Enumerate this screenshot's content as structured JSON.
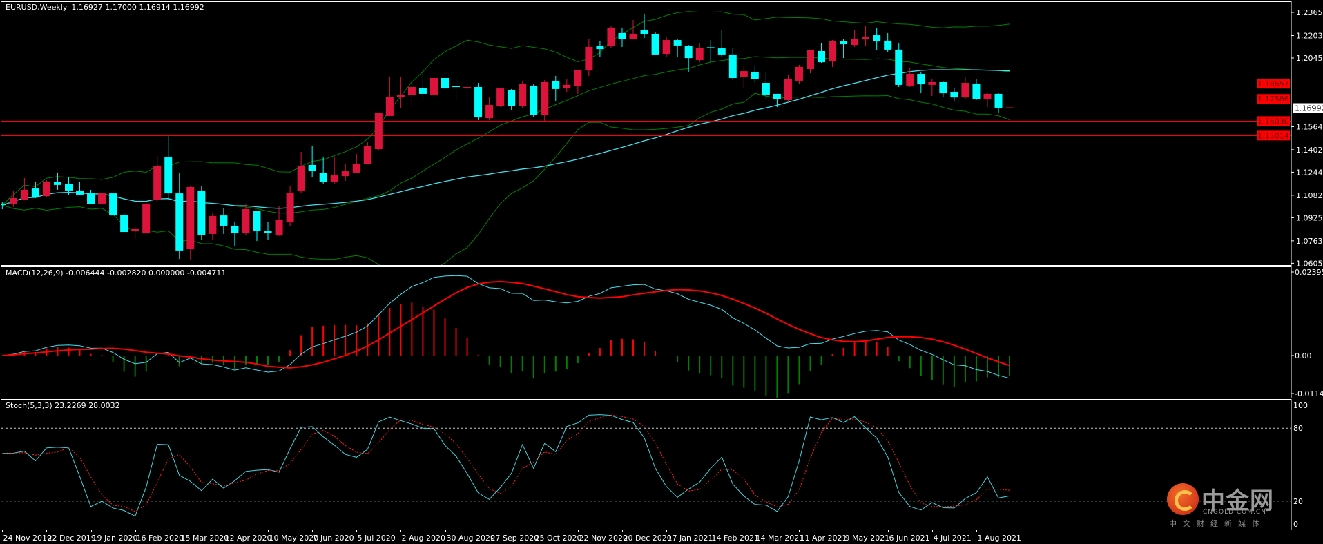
{
  "window": {
    "symbol_label": "EURUSD,Weekly",
    "ohlc_readout": "1.16927 1.17000 1.16914 1.16992"
  },
  "colors": {
    "background": "#000000",
    "up_candle": "#dc143c",
    "down_candle": "#00ffff",
    "bollinger": "#008000",
    "moving_average": "#3fe0f0",
    "level_line": "#ff0000",
    "current_price_line": "#a0a0a0",
    "macd_main": "#40e0f0",
    "macd_signal": "#ff0000",
    "hist_positive": "#ff0000",
    "hist_negative": "#008000",
    "stoch_main": "#40d8e0",
    "stoch_signal": "#ff2020"
  },
  "chart_data": {
    "type": "candlestick",
    "symbol": "EURUSD",
    "timeframe": "Weekly",
    "x_labels": [
      "24 Nov 2019",
      "22 Dec 2019",
      "19 Jan 2020",
      "16 Feb 2020",
      "15 Mar 2020",
      "12 Apr 2020",
      "10 May 2020",
      "7 Jun 2020",
      "5 Jul 2020",
      "2 Aug 2020",
      "30 Aug 2020",
      "27 Sep 2020",
      "25 Oct 2020",
      "22 Nov 2020",
      "20 Dec 2020",
      "17 Jan 2021",
      "14 Feb 2021",
      "14 Mar 2021",
      "11 Apr 2021",
      "9 May 2021",
      "6 Jun 2021",
      "4 Jul 2021",
      "1 Aug 2021"
    ],
    "ohlc_fields": [
      "open",
      "high",
      "low",
      "close"
    ],
    "ohlc": [
      [
        1.1024,
        1.1034,
        1.0985,
        1.1014
      ],
      [
        1.1024,
        1.1116,
        1.1,
        1.1063
      ],
      [
        1.1053,
        1.1203,
        1.1048,
        1.1121
      ],
      [
        1.113,
        1.1174,
        1.1063,
        1.1072
      ],
      [
        1.1077,
        1.1188,
        1.1067,
        1.1179
      ],
      [
        1.1174,
        1.1242,
        1.1121,
        1.1155
      ],
      [
        1.1164,
        1.1208,
        1.1082,
        1.1116
      ],
      [
        1.1116,
        1.1174,
        1.1082,
        1.1087
      ],
      [
        1.1096,
        1.1121,
        1.1019,
        1.1019
      ],
      [
        1.1024,
        1.1096,
        1.099,
        1.1096
      ],
      [
        1.1096,
        1.11,
        1.0941,
        1.0941
      ],
      [
        1.0946,
        1.0961,
        1.0825,
        1.0825
      ],
      [
        1.0835,
        1.0864,
        1.0777,
        1.085
      ],
      [
        1.082,
        1.1053,
        1.0801,
        1.1024
      ],
      [
        1.1048,
        1.1358,
        1.1034,
        1.129
      ],
      [
        1.1348,
        1.1498,
        1.1053,
        1.1096
      ],
      [
        1.1096,
        1.1237,
        1.0636,
        1.0695
      ],
      [
        1.0704,
        1.115,
        1.0632,
        1.114
      ],
      [
        1.1116,
        1.1145,
        1.0772,
        1.0806
      ],
      [
        1.0811,
        1.0956,
        1.0767,
        1.0937
      ],
      [
        1.0941,
        1.099,
        1.0811,
        1.0869
      ],
      [
        1.0869,
        1.0898,
        1.0724,
        1.082
      ],
      [
        1.082,
        1.1019,
        1.0806,
        1.0985
      ],
      [
        1.0971,
        1.0975,
        1.0762,
        1.0835
      ],
      [
        1.083,
        1.0898,
        1.0772,
        1.0816
      ],
      [
        1.0806,
        1.1009,
        1.0796,
        1.0908
      ],
      [
        1.0893,
        1.1145,
        1.0869,
        1.1101
      ],
      [
        1.1116,
        1.1387,
        1.1096,
        1.129
      ],
      [
        1.1295,
        1.1426,
        1.1208,
        1.1256
      ],
      [
        1.1237,
        1.1353,
        1.1164,
        1.1174
      ],
      [
        1.1179,
        1.1348,
        1.1164,
        1.1222
      ],
      [
        1.1217,
        1.1305,
        1.1184,
        1.1251
      ],
      [
        1.1242,
        1.1372,
        1.1237,
        1.13
      ],
      [
        1.13,
        1.1455,
        1.13,
        1.1426
      ],
      [
        1.1406,
        1.1658,
        1.1397,
        1.1658
      ],
      [
        1.1639,
        1.191,
        1.1639,
        1.1774
      ],
      [
        1.1769,
        1.1915,
        1.1692,
        1.1789
      ],
      [
        1.1784,
        1.1866,
        1.1707,
        1.1842
      ],
      [
        1.1837,
        1.1968,
        1.175,
        1.1794
      ],
      [
        1.1789,
        1.192,
        1.176,
        1.1905
      ],
      [
        1.1905,
        1.2012,
        1.1779,
        1.1832
      ],
      [
        1.1849,
        1.192,
        1.175,
        1.1845
      ],
      [
        1.1832,
        1.19,
        1.1736,
        1.1842
      ],
      [
        1.1842,
        1.1871,
        1.161,
        1.1629
      ],
      [
        1.1624,
        1.1769,
        1.161,
        1.1716
      ],
      [
        1.1707,
        1.1832,
        1.1702,
        1.1832
      ],
      [
        1.1818,
        1.1828,
        1.1682,
        1.1711
      ],
      [
        1.1711,
        1.1881,
        1.1697,
        1.1866
      ],
      [
        1.1852,
        1.1861,
        1.1634,
        1.1644
      ],
      [
        1.1644,
        1.1891,
        1.1605,
        1.1876
      ],
      [
        1.1886,
        1.192,
        1.174,
        1.1828
      ],
      [
        1.1832,
        1.1895,
        1.1808,
        1.1857
      ],
      [
        1.1847,
        1.1963,
        1.1794,
        1.1963
      ],
      [
        1.1958,
        1.2176,
        1.192,
        1.2123
      ],
      [
        1.2128,
        1.2167,
        1.2055,
        1.2108
      ],
      [
        1.2128,
        1.2273,
        1.2113,
        1.2254
      ],
      [
        1.222,
        1.2259,
        1.2123,
        1.2181
      ],
      [
        1.2181,
        1.2312,
        1.2176,
        1.2215
      ],
      [
        1.2239,
        1.2351,
        1.2186,
        1.2215
      ],
      [
        1.2215,
        1.2225,
        1.207,
        1.207
      ],
      [
        1.2074,
        1.2191,
        1.205,
        1.2171
      ],
      [
        1.2171,
        1.2181,
        1.2055,
        1.2133
      ],
      [
        1.2128,
        1.2137,
        1.1949,
        1.2045
      ],
      [
        1.2031,
        1.2152,
        1.2016,
        1.2118
      ],
      [
        1.2121,
        1.2171,
        1.2016,
        1.2116
      ],
      [
        1.2113,
        1.2244,
        1.2055,
        1.207
      ],
      [
        1.207,
        1.2113,
        1.1891,
        1.1905
      ],
      [
        1.1915,
        1.1992,
        1.1832,
        1.1953
      ],
      [
        1.1944,
        1.1987,
        1.1871,
        1.19
      ],
      [
        1.1871,
        1.1949,
        1.176,
        1.1789
      ],
      [
        1.1794,
        1.1794,
        1.1702,
        1.1755
      ],
      [
        1.175,
        1.1929,
        1.1736,
        1.19
      ],
      [
        1.1886,
        1.1997,
        1.1866,
        1.1983
      ],
      [
        1.1968,
        1.2099,
        1.1939,
        1.2099
      ],
      [
        1.2094,
        1.2152,
        1.2012,
        1.2016
      ],
      [
        1.2021,
        1.2171,
        1.1983,
        1.2162
      ],
      [
        1.2162,
        1.2181,
        1.2045,
        1.2142
      ],
      [
        1.2137,
        1.2244,
        1.2123,
        1.2181
      ],
      [
        1.2176,
        1.2268,
        1.2128,
        1.2191
      ],
      [
        1.2205,
        1.2254,
        1.2099,
        1.2162
      ],
      [
        1.2167,
        1.222,
        1.2089,
        1.2104
      ],
      [
        1.2104,
        1.2147,
        1.1842,
        1.1857
      ],
      [
        1.1852,
        1.1978,
        1.1842,
        1.1934
      ],
      [
        1.1934,
        1.1944,
        1.1803,
        1.1861
      ],
      [
        1.1857,
        1.1895,
        1.1779,
        1.1876
      ],
      [
        1.1876,
        1.1881,
        1.1769,
        1.1798
      ],
      [
        1.1808,
        1.1832,
        1.1745,
        1.1769
      ],
      [
        1.1769,
        1.191,
        1.176,
        1.1871
      ],
      [
        1.1866,
        1.19,
        1.175,
        1.1755
      ],
      [
        1.176,
        1.1803,
        1.1702,
        1.1794
      ],
      [
        1.1794,
        1.1803,
        1.1658,
        1.1697
      ],
      [
        1.16927,
        1.17,
        1.16914,
        1.16992
      ]
    ],
    "price_axis": {
      "range": [
        1.06055,
        1.2365
      ],
      "tick_labels": [
        "1.23650",
        "1.22030",
        "1.20455",
        "1.15640",
        "1.14020",
        "1.12445",
        "1.10825",
        "1.09250",
        "1.07630",
        "1.06055"
      ]
    },
    "level_lines": [
      "1.18657",
      "1.17586",
      "1.16030",
      "1.15014"
    ],
    "current_price": "1.16992",
    "overlays": {
      "bollinger_bands": {
        "period": 20,
        "deviation": 2
      },
      "moving_average": {
        "period": 50
      }
    },
    "macd": {
      "label": "MACD(12,26,9) -0.006444 -0.002820 0.000000 -0.004711",
      "fast": 12,
      "slow": 26,
      "signal": 9,
      "range": [
        -0.01149,
        0.023952
      ],
      "tick_labels": [
        "0.023952",
        "0.00",
        "-0.01149"
      ]
    },
    "stochastic": {
      "label": "Stoch(5,3,3) 23.2269 28.0032",
      "k": 5,
      "d": 3,
      "slowing": 3,
      "range": [
        0,
        100
      ],
      "levels": [
        80,
        20
      ],
      "tick_labels": [
        "100",
        "80",
        "20",
        "0"
      ]
    }
  },
  "watermark": {
    "brand": "中金网",
    "domain": "CNGOLD.COM.CN",
    "tagline": "中文财经新媒体"
  }
}
